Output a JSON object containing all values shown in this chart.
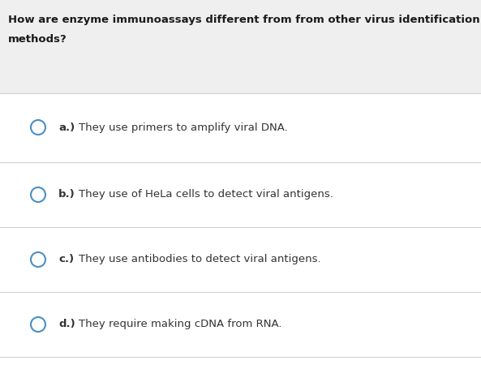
{
  "question_line1": "How are enzyme immunoassays different from from other virus identification",
  "question_line2": "methods?",
  "question_bg": "#efefef",
  "answer_bg": "#ffffff",
  "divider_color": "#d0d0d0",
  "circle_color": "#4a90c4",
  "question_font_size": 9.5,
  "answer_font_size": 9.5,
  "question_text_color": "#1a1a1a",
  "answer_text_color": "#333333",
  "options": [
    {
      "label": "a.)",
      "text": "They use primers to amplify viral DNA."
    },
    {
      "label": "b.)",
      "text": "They use of HeLa cells to detect viral antigens."
    },
    {
      "label": "c.)",
      "text": "They use antibodies to detect viral antigens."
    },
    {
      "label": "d.)",
      "text": "They require making cDNA from RNA."
    }
  ],
  "fig_width": 5.93,
  "fig_height": 4.5,
  "dpi": 100
}
